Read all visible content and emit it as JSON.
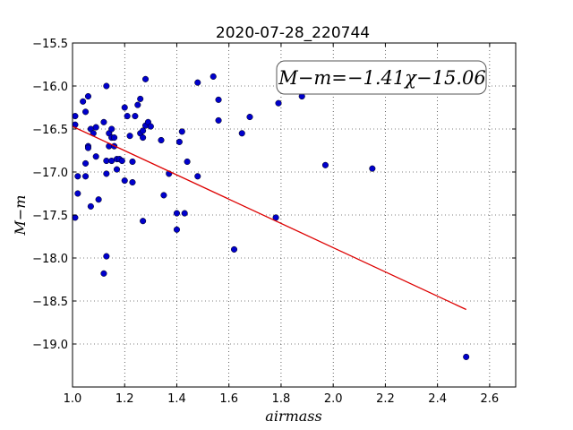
{
  "chart_data": {
    "type": "scatter",
    "title": "2020-07-28_220744",
    "xlabel": "airmass",
    "ylabel": "M−m",
    "xlim": [
      1.0,
      2.7
    ],
    "ylim": [
      -19.5,
      -15.5
    ],
    "y_inverted": true,
    "xticks": [
      1.0,
      1.2,
      1.4,
      1.6,
      1.8,
      2.0,
      2.2,
      2.4,
      2.6
    ],
    "yticks": [
      -15.5,
      -16.0,
      -16.5,
      -17.0,
      -17.5,
      -18.0,
      -18.5,
      -19.0
    ],
    "xtick_labels": [
      "1.0",
      "1.2",
      "1.4",
      "1.6",
      "1.8",
      "2.0",
      "2.2",
      "2.4",
      "2.6"
    ],
    "ytick_labels": [
      "−15.5",
      "−16.0",
      "−16.5",
      "−17.0",
      "−17.5",
      "−18.0",
      "−18.5",
      "−19.0"
    ],
    "grid": true,
    "annotation": "M−m=−1.41χ−15.06",
    "colors": {
      "points": "#0000cc",
      "fit": "#dd0000"
    },
    "fit": {
      "slope": -1.41,
      "intercept": -15.06,
      "x_range": [
        1.0,
        2.51
      ]
    },
    "points": [
      [
        1.01,
        -16.35
      ],
      [
        1.01,
        -16.45
      ],
      [
        1.02,
        -17.05
      ],
      [
        1.02,
        -17.25
      ],
      [
        1.01,
        -17.53
      ],
      [
        1.04,
        -16.18
      ],
      [
        1.05,
        -16.3
      ],
      [
        1.05,
        -16.9
      ],
      [
        1.05,
        -17.05
      ],
      [
        1.06,
        -16.7
      ],
      [
        1.06,
        -16.72
      ],
      [
        1.06,
        -16.12
      ],
      [
        1.07,
        -16.5
      ],
      [
        1.07,
        -17.4
      ],
      [
        1.08,
        -16.55
      ],
      [
        1.09,
        -16.48
      ],
      [
        1.09,
        -16.82
      ],
      [
        1.1,
        -17.32
      ],
      [
        1.12,
        -16.42
      ],
      [
        1.13,
        -16.0
      ],
      [
        1.13,
        -16.87
      ],
      [
        1.13,
        -17.02
      ],
      [
        1.13,
        -17.98
      ],
      [
        1.12,
        -18.18
      ],
      [
        1.14,
        -16.55
      ],
      [
        1.14,
        -16.7
      ],
      [
        1.15,
        -16.5
      ],
      [
        1.15,
        -16.6
      ],
      [
        1.15,
        -16.87
      ],
      [
        1.16,
        -16.6
      ],
      [
        1.16,
        -16.7
      ],
      [
        1.17,
        -16.85
      ],
      [
        1.17,
        -16.97
      ],
      [
        1.18,
        -16.85
      ],
      [
        1.19,
        -16.87
      ],
      [
        1.2,
        -16.25
      ],
      [
        1.2,
        -17.1
      ],
      [
        1.21,
        -16.35
      ],
      [
        1.22,
        -16.58
      ],
      [
        1.23,
        -16.88
      ],
      [
        1.23,
        -17.12
      ],
      [
        1.24,
        -16.35
      ],
      [
        1.25,
        -16.22
      ],
      [
        1.26,
        -16.15
      ],
      [
        1.26,
        -16.55
      ],
      [
        1.27,
        -16.52
      ],
      [
        1.27,
        -16.6
      ],
      [
        1.27,
        -17.57
      ],
      [
        1.28,
        -16.46
      ],
      [
        1.28,
        -15.92
      ],
      [
        1.29,
        -16.42
      ],
      [
        1.3,
        -16.47
      ],
      [
        1.34,
        -16.63
      ],
      [
        1.35,
        -17.27
      ],
      [
        1.37,
        -17.02
      ],
      [
        1.4,
        -17.48
      ],
      [
        1.4,
        -17.67
      ],
      [
        1.41,
        -16.65
      ],
      [
        1.42,
        -16.53
      ],
      [
        1.43,
        -17.48
      ],
      [
        1.44,
        -16.88
      ],
      [
        1.48,
        -15.96
      ],
      [
        1.48,
        -17.05
      ],
      [
        1.54,
        -15.89
      ],
      [
        1.56,
        -16.16
      ],
      [
        1.56,
        -16.4
      ],
      [
        1.62,
        -17.9
      ],
      [
        1.65,
        -16.55
      ],
      [
        1.68,
        -16.36
      ],
      [
        1.78,
        -17.53
      ],
      [
        1.79,
        -16.2
      ],
      [
        1.88,
        -16.12
      ],
      [
        1.97,
        -16.92
      ],
      [
        2.15,
        -16.96
      ],
      [
        2.51,
        -19.15
      ]
    ]
  }
}
